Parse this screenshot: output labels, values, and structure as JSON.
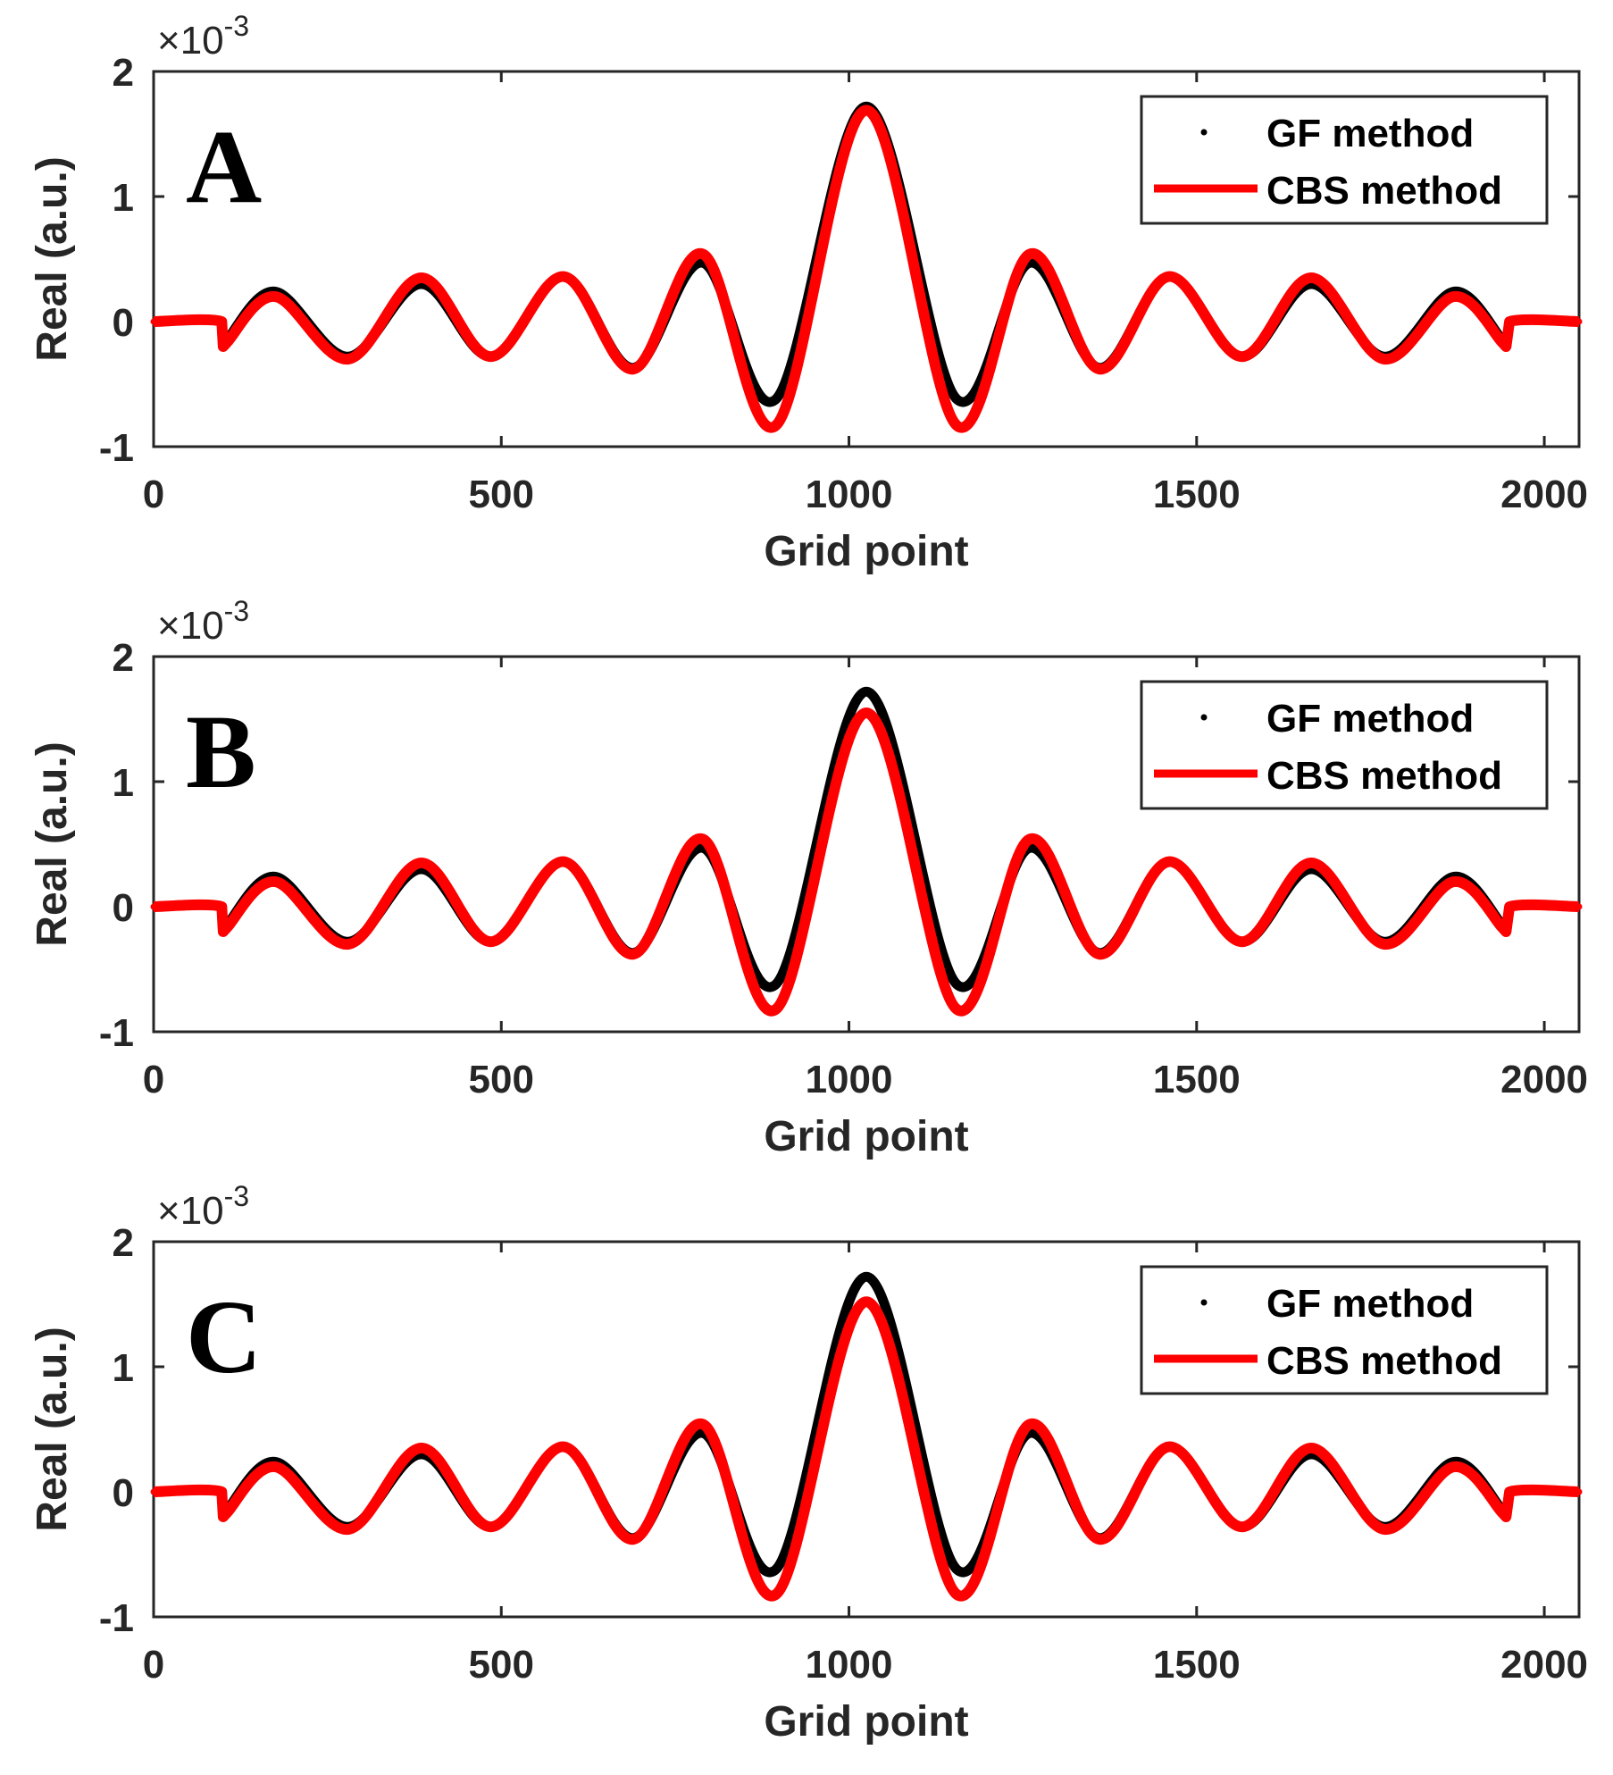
{
  "chart_data": [
    {
      "type": "line",
      "panel_label": "A",
      "xlabel": "Grid point",
      "ylabel": "Real (a.u.)",
      "exponent_label": "×10",
      "exponent_power": "-3",
      "xlim": [
        0,
        2050
      ],
      "ylim": [
        -1,
        2
      ],
      "xticks": [
        0,
        500,
        1000,
        1500,
        2000
      ],
      "xtick_labels": [
        "0",
        "500",
        "1000",
        "1500",
        "2000"
      ],
      "yticks": [
        -1,
        0,
        1,
        2
      ],
      "ytick_labels": [
        "-1",
        "0",
        "1",
        "2"
      ],
      "grid": false,
      "legend": "top-right",
      "series": [
        {
          "name": "GF method",
          "color": "#000000",
          "x": [
            0,
            98,
            100,
            105,
            175,
            280,
            385,
            485,
            590,
            690,
            790,
            895,
            1025,
            1155,
            1260,
            1360,
            1460,
            1565,
            1665,
            1770,
            1870,
            1940,
            1945,
            1950,
            2050
          ],
          "y": [
            0,
            0,
            -0.18,
            -0.15,
            0.24,
            -0.28,
            0.3,
            -0.28,
            0.36,
            -0.37,
            0.47,
            -0.62,
            1.72,
            -0.62,
            0.47,
            -0.37,
            0.36,
            -0.28,
            0.3,
            -0.28,
            0.24,
            -0.15,
            -0.18,
            0,
            0
          ]
        },
        {
          "name": "CBS method",
          "color": "#ff0000",
          "x": [
            0,
            98,
            100,
            105,
            175,
            280,
            385,
            485,
            590,
            690,
            790,
            895,
            1025,
            1155,
            1260,
            1360,
            1460,
            1565,
            1665,
            1770,
            1870,
            1940,
            1945,
            1950,
            2050
          ],
          "y": [
            0,
            0,
            -0.2,
            -0.17,
            0.2,
            -0.3,
            0.35,
            -0.28,
            0.36,
            -0.38,
            0.54,
            -0.83,
            1.69,
            -0.83,
            0.54,
            -0.38,
            0.36,
            -0.28,
            0.35,
            -0.3,
            0.2,
            -0.17,
            -0.2,
            0,
            0
          ]
        }
      ]
    },
    {
      "type": "line",
      "panel_label": "B",
      "xlabel": "Grid point",
      "ylabel": "Real (a.u.)",
      "exponent_label": "×10",
      "exponent_power": "-3",
      "xlim": [
        0,
        2050
      ],
      "ylim": [
        -1,
        2
      ],
      "xticks": [
        0,
        500,
        1000,
        1500,
        2000
      ],
      "xtick_labels": [
        "0",
        "500",
        "1000",
        "1500",
        "2000"
      ],
      "yticks": [
        -1,
        0,
        1,
        2
      ],
      "ytick_labels": [
        "-1",
        "0",
        "1",
        "2"
      ],
      "grid": false,
      "legend": "top-right",
      "series": [
        {
          "name": "GF method",
          "color": "#000000",
          "x": [
            0,
            98,
            100,
            105,
            175,
            280,
            385,
            485,
            590,
            690,
            790,
            895,
            1025,
            1155,
            1260,
            1360,
            1460,
            1565,
            1665,
            1770,
            1870,
            1940,
            1945,
            1950,
            2050
          ],
          "y": [
            0,
            0,
            -0.18,
            -0.15,
            0.24,
            -0.28,
            0.3,
            -0.28,
            0.36,
            -0.37,
            0.47,
            -0.62,
            1.72,
            -0.62,
            0.47,
            -0.37,
            0.36,
            -0.28,
            0.3,
            -0.28,
            0.24,
            -0.15,
            -0.18,
            0,
            0
          ]
        },
        {
          "name": "CBS method",
          "color": "#ff0000",
          "x": [
            0,
            98,
            100,
            105,
            175,
            280,
            385,
            485,
            590,
            690,
            790,
            895,
            1025,
            1155,
            1260,
            1360,
            1460,
            1565,
            1665,
            1770,
            1870,
            1940,
            1945,
            1950,
            2050
          ],
          "y": [
            0,
            0,
            -0.2,
            -0.17,
            0.2,
            -0.3,
            0.35,
            -0.28,
            0.36,
            -0.38,
            0.54,
            -0.82,
            1.55,
            -0.82,
            0.54,
            -0.38,
            0.36,
            -0.28,
            0.35,
            -0.3,
            0.2,
            -0.17,
            -0.2,
            0,
            0
          ]
        }
      ]
    },
    {
      "type": "line",
      "panel_label": "C",
      "xlabel": "Grid point",
      "ylabel": "Real (a.u.)",
      "exponent_label": "×10",
      "exponent_power": "-3",
      "xlim": [
        0,
        2050
      ],
      "ylim": [
        -1,
        2
      ],
      "xticks": [
        0,
        500,
        1000,
        1500,
        2000
      ],
      "xtick_labels": [
        "0",
        "500",
        "1000",
        "1500",
        "2000"
      ],
      "yticks": [
        -1,
        0,
        1,
        2
      ],
      "ytick_labels": [
        "-1",
        "0",
        "1",
        "2"
      ],
      "grid": false,
      "legend": "top-right",
      "series": [
        {
          "name": "GF method",
          "color": "#000000",
          "x": [
            0,
            98,
            100,
            105,
            175,
            280,
            385,
            485,
            590,
            690,
            790,
            895,
            1025,
            1155,
            1260,
            1360,
            1460,
            1565,
            1665,
            1770,
            1870,
            1940,
            1945,
            1950,
            2050
          ],
          "y": [
            0,
            0,
            -0.18,
            -0.15,
            0.24,
            -0.28,
            0.3,
            -0.28,
            0.36,
            -0.37,
            0.47,
            -0.62,
            1.72,
            -0.62,
            0.47,
            -0.37,
            0.36,
            -0.28,
            0.3,
            -0.28,
            0.24,
            -0.15,
            -0.18,
            0,
            0
          ]
        },
        {
          "name": "CBS method",
          "color": "#ff0000",
          "x": [
            0,
            98,
            100,
            105,
            175,
            280,
            385,
            485,
            590,
            690,
            790,
            895,
            1025,
            1155,
            1260,
            1360,
            1460,
            1565,
            1665,
            1770,
            1870,
            1940,
            1945,
            1950,
            2050
          ],
          "y": [
            0,
            0,
            -0.2,
            -0.17,
            0.2,
            -0.3,
            0.35,
            -0.28,
            0.36,
            -0.38,
            0.54,
            -0.82,
            1.52,
            -0.82,
            0.54,
            -0.38,
            0.36,
            -0.28,
            0.35,
            -0.3,
            0.2,
            -0.17,
            -0.2,
            0,
            0
          ]
        }
      ]
    }
  ]
}
